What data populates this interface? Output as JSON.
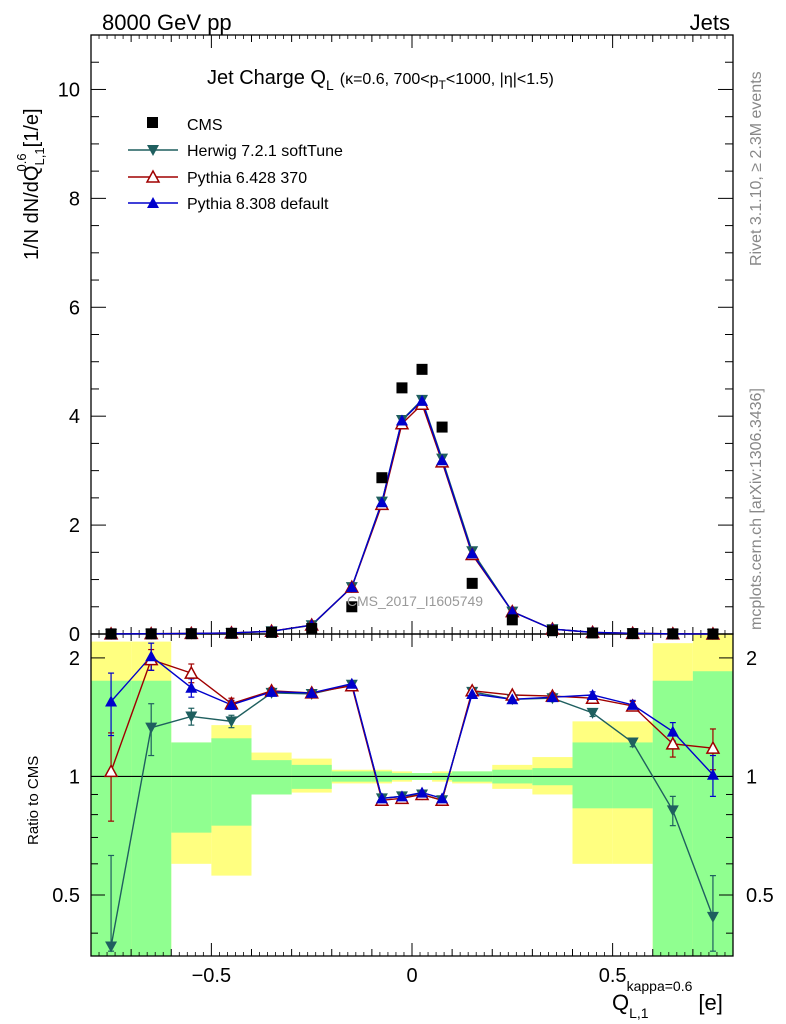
{
  "header": {
    "energy_label": "8000 GeV pp",
    "category_label": "Jets"
  },
  "side_labels": {
    "rivet": "Rivet 3.1.10, ≥ 2.3M events",
    "source": "mcplots.cern.ch [arXiv:1306.3436]"
  },
  "watermark": "CMS_2017_I1605749",
  "title": {
    "main": "Jet Charge Q",
    "main_sub": "L",
    "cond_a": "(κ=0.6, 700<p",
    "cond_sub": "T",
    "cond_b": "<1000, |η|<1.5)"
  },
  "axes": {
    "ylabel_main": "1/N dN/dQ",
    "ylabel_main_sup": "0.6",
    "ylabel_main_sub": "L,1",
    "ylabel_main_unit": "[1/e]",
    "ylabel_ratio": "Ratio to CMS",
    "xlabel": "Q",
    "xlabel_sup": "kappa=0.6",
    "xlabel_sub": "L,1",
    "xlabel_unit": "[e]",
    "xlim": [
      -0.8,
      0.8
    ],
    "ylim_main": [
      0,
      11
    ],
    "ylim_ratio": [
      0.35,
      2.3
    ],
    "x_ticks": [
      "−0.5",
      "0",
      "0.5"
    ],
    "y_ticks_main": [
      "0",
      "2",
      "4",
      "6",
      "8",
      "10"
    ],
    "y_ticks_ratio": [
      "0.5",
      "1",
      "2"
    ]
  },
  "legend": {
    "placement": "top-left",
    "entries": [
      {
        "label": "CMS",
        "color": "#000000",
        "marker": "square"
      },
      {
        "label": "Herwig 7.2.1 softTune",
        "color": "#1f5f5f",
        "marker": "triangle-down"
      },
      {
        "label": "Pythia 6.428 370",
        "color": "#a00000",
        "marker": "triangle-open"
      },
      {
        "label": "Pythia 8.308 default",
        "color": "#0000cc",
        "marker": "triangle-up"
      }
    ]
  },
  "chart_data": {
    "type": "scatter",
    "x": [
      -0.75,
      -0.65,
      -0.55,
      -0.45,
      -0.35,
      -0.25,
      -0.15,
      -0.075,
      -0.025,
      0.025,
      0.075,
      0.15,
      0.25,
      0.35,
      0.45,
      0.55,
      0.65,
      0.75
    ],
    "bin_edges": [
      -0.8,
      -0.7,
      -0.6,
      -0.5,
      -0.4,
      -0.3,
      -0.2,
      -0.1,
      -0.05,
      0.0,
      0.05,
      0.1,
      0.2,
      0.3,
      0.4,
      0.5,
      0.6,
      0.7,
      0.8
    ],
    "main_series": [
      {
        "name": "CMS",
        "values": [
          0.002,
          0.003,
          0.006,
          0.013,
          0.03,
          0.1,
          0.5,
          2.87,
          4.52,
          4.86,
          3.8,
          0.93,
          0.26,
          0.06,
          0.019,
          0.008,
          0.003,
          0.001
        ]
      },
      {
        "name": "Herwig 7.2.1 softTune",
        "values": [
          0.001,
          0.004,
          0.008,
          0.018,
          0.05,
          0.16,
          0.86,
          2.43,
          3.93,
          4.3,
          3.22,
          1.52,
          0.41,
          0.09,
          0.028,
          0.01,
          0.0025,
          0.0004
        ]
      },
      {
        "name": "Pythia 6.428 370",
        "values": [
          0.002,
          0.006,
          0.011,
          0.02,
          0.051,
          0.165,
          0.86,
          2.38,
          3.86,
          4.22,
          3.16,
          1.46,
          0.41,
          0.09,
          0.029,
          0.012,
          0.004,
          0.001
        ]
      },
      {
        "name": "Pythia 8.308 default",
        "values": [
          0.003,
          0.006,
          0.01,
          0.02,
          0.05,
          0.165,
          0.86,
          2.42,
          3.92,
          4.28,
          3.19,
          1.48,
          0.41,
          0.09,
          0.03,
          0.012,
          0.004,
          0.001
        ]
      }
    ],
    "ratio_series": [
      {
        "name": "Herwig 7.2.1 softTune",
        "values": [
          0.37,
          1.33,
          1.42,
          1.38,
          1.63,
          1.62,
          1.71,
          0.88,
          0.89,
          0.9,
          0.87,
          1.64,
          1.57,
          1.58,
          1.45,
          1.22,
          0.82,
          0.44
        ],
        "err": [
          0.26,
          0.2,
          0.07,
          0.05,
          0.03,
          0.02,
          0.02,
          0.01,
          0.01,
          0.01,
          0.01,
          0.02,
          0.02,
          0.03,
          0.03,
          0.03,
          0.07,
          0.12
        ]
      },
      {
        "name": "Pythia 6.428 370",
        "values": [
          1.03,
          1.98,
          1.83,
          1.53,
          1.65,
          1.63,
          1.7,
          0.87,
          0.88,
          0.9,
          0.87,
          1.65,
          1.61,
          1.6,
          1.58,
          1.51,
          1.21,
          1.18
        ],
        "err": [
          0.26,
          0.12,
          0.1,
          0.05,
          0.03,
          0.02,
          0.02,
          0.01,
          0.01,
          0.01,
          0.01,
          0.02,
          0.02,
          0.03,
          0.03,
          0.04,
          0.09,
          0.14
        ]
      },
      {
        "name": "Pythia 8.308 default",
        "values": [
          1.55,
          2.02,
          1.68,
          1.52,
          1.64,
          1.63,
          1.72,
          0.88,
          0.89,
          0.91,
          0.88,
          1.62,
          1.57,
          1.59,
          1.61,
          1.52,
          1.3,
          1.01
        ],
        "err": [
          0.28,
          0.16,
          0.09,
          0.04,
          0.03,
          0.02,
          0.02,
          0.01,
          0.01,
          0.01,
          0.01,
          0.02,
          0.02,
          0.03,
          0.03,
          0.04,
          0.07,
          0.12
        ]
      }
    ],
    "ratio_bands": {
      "green": [
        [
          0.35,
          1.75
        ],
        [
          0.35,
          1.75
        ],
        [
          0.72,
          1.22
        ],
        [
          0.75,
          1.25
        ],
        [
          0.9,
          1.1
        ],
        [
          0.93,
          1.07
        ],
        [
          0.97,
          1.03
        ],
        [
          0.97,
          1.03
        ],
        [
          0.98,
          1.02
        ],
        [
          0.98,
          1.02
        ],
        [
          0.98,
          1.02
        ],
        [
          0.97,
          1.03
        ],
        [
          0.96,
          1.04
        ],
        [
          0.95,
          1.05
        ],
        [
          0.83,
          1.22
        ],
        [
          0.83,
          1.22
        ],
        [
          0.35,
          1.75
        ],
        [
          0.35,
          1.85
        ]
      ],
      "yellow": [
        [
          0.35,
          2.2
        ],
        [
          0.35,
          2.2
        ],
        [
          0.6,
          1.22
        ],
        [
          0.56,
          1.35
        ],
        [
          0.9,
          1.15
        ],
        [
          0.91,
          1.11
        ],
        [
          0.96,
          1.04
        ],
        [
          0.96,
          1.04
        ],
        [
          0.97,
          1.03
        ],
        [
          0.98,
          1.02
        ],
        [
          0.97,
          1.03
        ],
        [
          0.96,
          1.03
        ],
        [
          0.93,
          1.07
        ],
        [
          0.9,
          1.12
        ],
        [
          0.6,
          1.38
        ],
        [
          0.6,
          1.38
        ],
        [
          0.35,
          2.18
        ],
        [
          0.35,
          2.3
        ]
      ]
    }
  }
}
